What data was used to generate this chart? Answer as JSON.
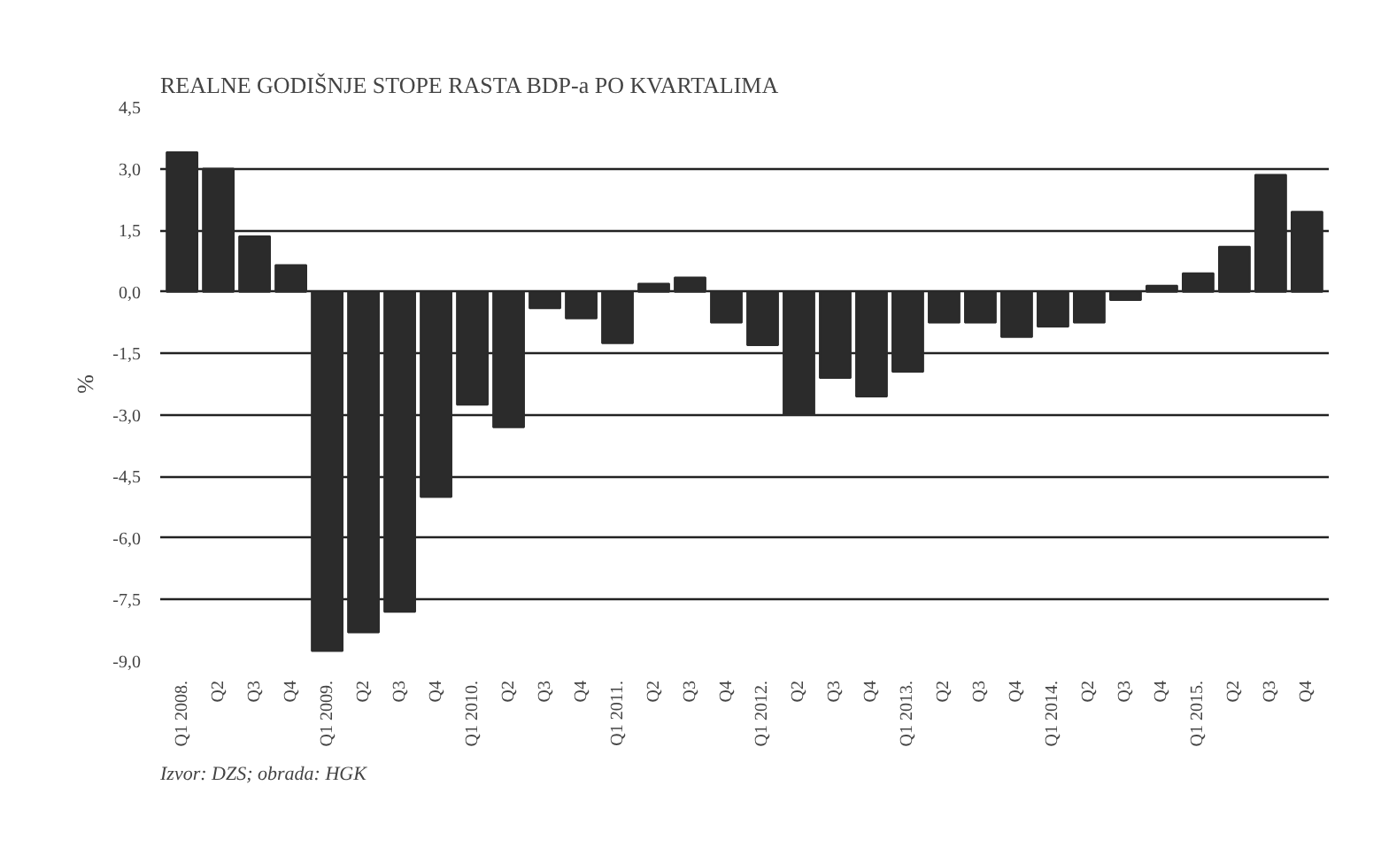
{
  "chart_data": {
    "type": "bar",
    "title": "REALNE GODIŠNJE STOPE RASTA BDP-a PO KVARTALIMA",
    "ylabel": "%",
    "categories": [
      "Q1 2008.",
      "Q2",
      "Q3",
      "Q4",
      "Q1 2009.",
      "Q2",
      "Q3",
      "Q4",
      "Q1 2010.",
      "Q2",
      "Q3",
      "Q4",
      "Q1 2011.",
      "Q2",
      "Q3",
      "Q4",
      "Q1 2012.",
      "Q2",
      "Q3",
      "Q4",
      "Q1 2013.",
      "Q2",
      "Q3",
      "Q4",
      "Q1 2014.",
      "Q2",
      "Q3",
      "Q4",
      "Q1 2015.",
      "Q2",
      "Q3",
      "Q4"
    ],
    "values": [
      3.4,
      3.0,
      1.35,
      0.65,
      -8.75,
      -8.3,
      -7.8,
      -5.0,
      -2.75,
      -3.3,
      -0.4,
      -0.65,
      -1.25,
      0.2,
      0.35,
      -0.75,
      -1.3,
      -3.0,
      -2.1,
      -2.55,
      -1.95,
      -0.75,
      -0.75,
      -1.1,
      -0.85,
      -0.75,
      -0.2,
      0.15,
      0.45,
      1.1,
      2.85,
      1.95
    ],
    "color": "#2b2b2b",
    "ylim": [
      -9.0,
      4.5
    ],
    "yticks": [
      {
        "value": 4.5,
        "label": "4,5"
      },
      {
        "value": 3.0,
        "label": "3,0"
      },
      {
        "value": 1.5,
        "label": "1,5"
      },
      {
        "value": 0.0,
        "label": "0,0"
      },
      {
        "value": -1.5,
        "label": "-1,5"
      },
      {
        "value": -3.0,
        "label": "-3,0"
      },
      {
        "value": -4.5,
        "label": "-4,5"
      },
      {
        "value": -6.0,
        "label": "-6,0"
      },
      {
        "value": -7.5,
        "label": "-7,5"
      },
      {
        "value": -9.0,
        "label": "-9,0"
      }
    ],
    "grid": "y",
    "annotations": [
      "Izvor: DZS; obrada: HGK"
    ]
  }
}
